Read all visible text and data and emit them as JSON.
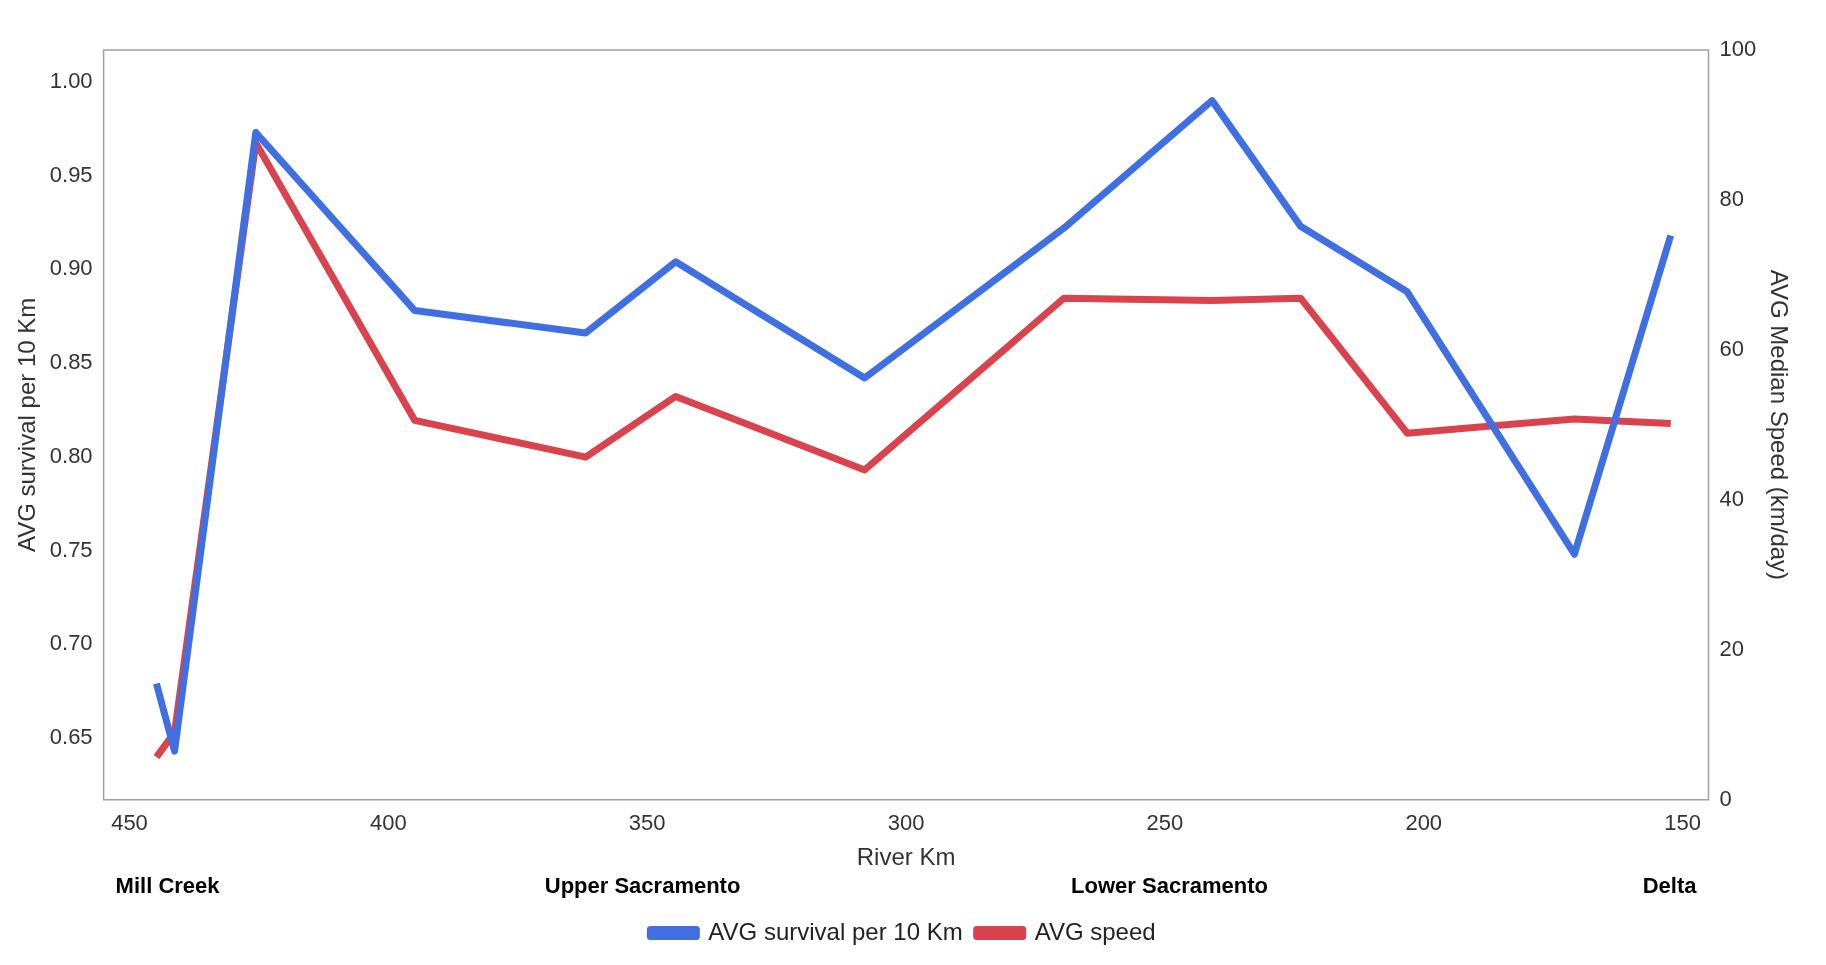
{
  "chart_data": {
    "type": "line",
    "xlabel": "River Km",
    "ylabel": "AVG survival per 10 Km",
    "y2label": "AVG Median Speed (km/day)",
    "xlim": [
      455,
      145
    ],
    "xticks": [
      450,
      400,
      350,
      300,
      250,
      200,
      150
    ],
    "ylim": [
      0.617,
      1.017
    ],
    "yticks": [
      0.65,
      {
        "value": 0.7,
        "label": "0.70"
      },
      0.75,
      {
        "value": 0.8,
        "label": "0.80"
      },
      0.85,
      {
        "value": 0.9,
        "label": "0.90"
      },
      0.95,
      {
        "value": 1,
        "label": "1.00"
      }
    ],
    "y2lim": [
      0,
      100
    ],
    "y2ticks": [
      0,
      20,
      40,
      60,
      80,
      100
    ],
    "x": [
      444.8,
      441.3,
      425.6,
      394.9,
      361.9,
      344.5,
      308,
      269.5,
      240.9,
      223.8,
      203.2,
      170.9,
      152.3
    ],
    "series": [
      {
        "name": "AVG survival per 10 Km",
        "color": "#3f6fe0",
        "values": [
          0.679,
          0.643,
          0.973,
          0.878,
          0.866,
          0.904,
          0.842,
          0.922,
          0.99,
          0.923,
          0.888,
          0.748,
          0.918
        ]
      },
      {
        "name": "AVG speed",
        "color": "#d9434e",
        "axis": "y2",
        "values": [
          5.7,
          9.0,
          87.6,
          50.6,
          45.7,
          53.8,
          44.0,
          66.9,
          66.6,
          66.9,
          48.9,
          50.8,
          50.2
        ]
      }
    ],
    "annotations": [
      "Mill Creek",
      "Upper Sacramento",
      "Lower Sacramento",
      "Delta"
    ],
    "grid": false,
    "legend": "bottom",
    "marker": "none",
    "line_style": "solid"
  }
}
